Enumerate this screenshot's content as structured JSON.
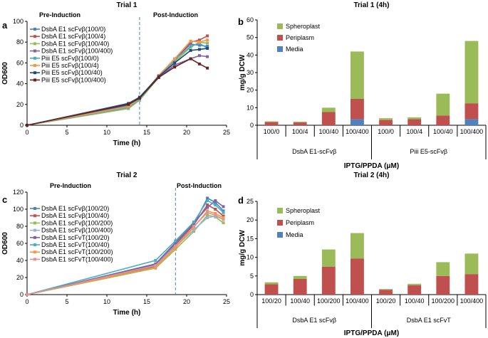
{
  "panel_letters": [
    "a",
    "b",
    "c",
    "d"
  ],
  "colors": {
    "series": [
      "#4f81bd",
      "#c0504d",
      "#9bbb59",
      "#8064a2",
      "#4bacc6",
      "#f79646",
      "#1f497d",
      "#632523"
    ],
    "series_c": [
      "#4f81bd",
      "#c0504d",
      "#9bbb59",
      "#95b3d7",
      "#8064a2",
      "#4bacc6",
      "#f79646",
      "#d99694"
    ],
    "spheroplast": "#9bbb59",
    "periplasm": "#c0504d",
    "media": "#4f81bd",
    "induction_line": "#4f81bd"
  },
  "chart_data": [
    {
      "type": "line",
      "title": "Trial 1",
      "xlabel": "Time (h)",
      "ylabel": "OD600",
      "xlim": [
        0,
        25
      ],
      "ylim": [
        0,
        100
      ],
      "xticks": [
        0,
        5,
        10,
        15,
        20,
        25
      ],
      "yticks": [
        0,
        20,
        40,
        60,
        80,
        100
      ],
      "induction_time": 14.1,
      "annotations": [
        "Pre-Induction",
        "Post-Induction"
      ],
      "x": [
        0,
        12.7,
        14.1,
        16.5,
        18.5,
        20.5,
        21.6,
        22.6
      ],
      "series": [
        {
          "name": "DsbA E1 scFvβ(100/0)",
          "values": [
            0,
            19,
            25,
            47,
            64,
            78,
            77,
            76
          ]
        },
        {
          "name": "DsbA E1 scFvβ(100/4)",
          "values": [
            0,
            18,
            26,
            47,
            62,
            80,
            82,
            86
          ]
        },
        {
          "name": "DsbA E1 scFvβ(100/40)",
          "values": [
            0,
            16,
            24,
            46,
            61,
            75,
            80,
            79
          ]
        },
        {
          "name": "DsbA E1 scFvβ(100/400)",
          "values": [
            0,
            20,
            27,
            46,
            58,
            64,
            67,
            66
          ]
        },
        {
          "name": "Piii E5 scFvβ(100/0)",
          "values": [
            0,
            17,
            25,
            47,
            63,
            76,
            79,
            74
          ]
        },
        {
          "name": "Piii E5 scFvβ(100/4)",
          "values": [
            0,
            18,
            26,
            48,
            64,
            81,
            80,
            82
          ]
        },
        {
          "name": "Piii E5 scFvβ(100/40)",
          "values": [
            0,
            21,
            27,
            47,
            60,
            72,
            73,
            74
          ]
        },
        {
          "name": "Piii E5 scFvβ(100/400)",
          "values": [
            0,
            20,
            26,
            46,
            56,
            64,
            59,
            55
          ]
        }
      ]
    },
    {
      "type": "bar",
      "stacked": true,
      "title": "Trial 1 (4h)",
      "xlabel": "IPTG/PPDA (μM)",
      "ylabel": "mg/g DCW",
      "ylim": [
        0,
        60
      ],
      "yticks": [
        0,
        10,
        20,
        30,
        40,
        50,
        60
      ],
      "categories": [
        "100/0",
        "100/4",
        "100/40",
        "100/400",
        "100/0",
        "100/4",
        "100/40",
        "100/400"
      ],
      "groups": [
        {
          "name": "DsbA E1-scFvβ",
          "count": 4
        },
        {
          "name": "Piii E5-scFvβ",
          "count": 4
        }
      ],
      "legend": [
        "Spheroplast",
        "Periplasm",
        "Media"
      ],
      "series": [
        {
          "name": "Media",
          "values": [
            0,
            0,
            0,
            3.5,
            0,
            0,
            0,
            3.5
          ]
        },
        {
          "name": "Periplasm",
          "values": [
            1.8,
            1.6,
            7.5,
            11.5,
            3,
            3.5,
            5.5,
            9
          ]
        },
        {
          "name": "Spheroplast",
          "values": [
            0.4,
            0.4,
            2.5,
            27,
            1,
            1,
            12.5,
            35.5
          ]
        }
      ]
    },
    {
      "type": "line",
      "title": "Trial 2",
      "xlabel": "Time (h)",
      "ylabel": "OD600",
      "xlim": [
        0,
        25
      ],
      "ylim": [
        0,
        120
      ],
      "xticks": [
        0,
        5,
        10,
        15,
        20,
        25
      ],
      "yticks": [
        0,
        20,
        40,
        60,
        80,
        100,
        120
      ],
      "induction_time": 18.6,
      "annotations": [
        "Pre-Induction",
        "Post-Induction"
      ],
      "x": [
        0,
        16.1,
        18.6,
        20.9,
        22.6,
        23.6,
        24.6
      ],
      "series": [
        {
          "name": "DsbA E1 scFvβ(100/20)",
          "values": [
            0,
            35,
            60,
            82,
            113,
            108,
            98
          ]
        },
        {
          "name": "DsbA E1 scFvβ(100/40)",
          "values": [
            0,
            33,
            58,
            82,
            105,
            100,
            92
          ]
        },
        {
          "name": "DsbA E1 scFvβ(100/200)",
          "values": [
            0,
            31,
            53,
            74,
            93,
            91,
            84
          ]
        },
        {
          "name": "DsbA E1 scFvβ(100/400)",
          "values": [
            0,
            34,
            56,
            76,
            90,
            92,
            88
          ]
        },
        {
          "name": "DsbA E1 scFvT(100/20)",
          "values": [
            0,
            36,
            61,
            84,
            102,
            110,
            103
          ]
        },
        {
          "name": "DsbA E1 scFvT(100/40)",
          "values": [
            0,
            40,
            63,
            85,
            110,
            105,
            96
          ]
        },
        {
          "name": "DsbA E1 scFvT(100/200)",
          "values": [
            0,
            32,
            55,
            79,
            98,
            95,
            90
          ]
        },
        {
          "name": "DsbA E1 scFvT(100/400)",
          "values": [
            0,
            34,
            57,
            80,
            96,
            93,
            88
          ]
        }
      ]
    },
    {
      "type": "bar",
      "stacked": true,
      "title": "Trial 2 (4h)",
      "xlabel": "IPTG/PPDA (μM)",
      "ylabel": "mg/g DCW",
      "ylim": [
        0,
        25
      ],
      "yticks": [
        0,
        5,
        10,
        15,
        20,
        25
      ],
      "categories": [
        "100/20",
        "100/40",
        "100/200",
        "100/400",
        "100/20",
        "100/40",
        "100/200",
        "100/400"
      ],
      "groups": [
        {
          "name": "DsbA E1 scFvβ",
          "count": 4
        },
        {
          "name": "DsbA E1 scFvT",
          "count": 4
        }
      ],
      "legend": [
        "Spheroplast",
        "Periplasm",
        "Media"
      ],
      "series": [
        {
          "name": "Media",
          "values": [
            0,
            0,
            0,
            0,
            0,
            0,
            0,
            0
          ]
        },
        {
          "name": "Periplasm",
          "values": [
            2.8,
            4.2,
            7.5,
            9.7,
            1.3,
            2.5,
            5,
            5.5
          ]
        },
        {
          "name": "Spheroplast",
          "values": [
            0.5,
            0.8,
            4.6,
            6.8,
            0.2,
            0.4,
            3.7,
            5.5
          ]
        }
      ]
    }
  ]
}
